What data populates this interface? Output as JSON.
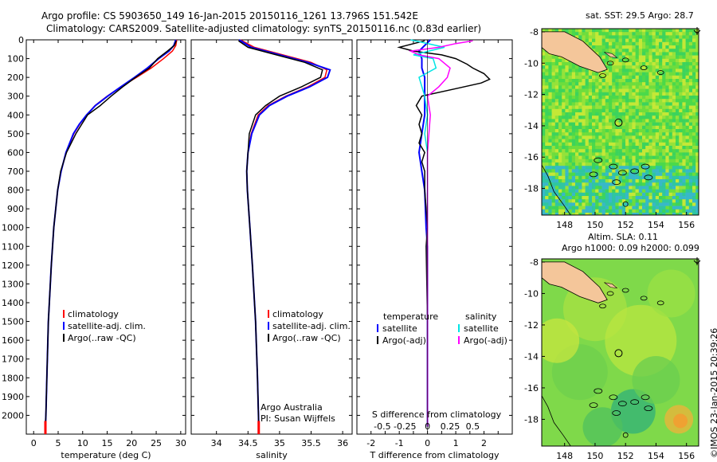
{
  "header": {
    "line1": "Argo profile: CS 5903650_149 16-Jan-2015 20150116_1261 13.796S 151.542E",
    "line2": "Climatology: CARS2009. Satellite-adjusted climatology: synTS_20150116.nc (0.83d earlier)"
  },
  "footer_credit": "©IMOS 23-Jan-2015 20:39:26",
  "chart_data": [
    {
      "type": "line",
      "name": "temperature",
      "xlabel": "temperature (deg C)",
      "ylabel": "",
      "xlim": [
        -1.5,
        31
      ],
      "ylim": [
        2100,
        0
      ],
      "xticks": [
        0,
        5,
        10,
        15,
        20,
        25,
        30
      ],
      "yticks": [
        0,
        100,
        200,
        300,
        400,
        500,
        600,
        700,
        800,
        900,
        1000,
        1100,
        1200,
        1300,
        1400,
        1500,
        1600,
        1700,
        1800,
        1900,
        2000
      ],
      "legend": [
        "climatology",
        "satellite-adj. clim.",
        "Argo(..raw -QC)"
      ],
      "legend_colors": [
        "#ff0000",
        "#0000ff",
        "#000000"
      ],
      "series": [
        {
          "name": "climatology",
          "color": "#ff0000",
          "depth": [
            0,
            30,
            60,
            100,
            150,
            200,
            250,
            300,
            350,
            400,
            450,
            500,
            600,
            700,
            800,
            1000,
            1200,
            1500,
            1800,
            2000,
            2060
          ],
          "values": [
            29.2,
            29.0,
            28.3,
            26.5,
            24.0,
            21.0,
            17.8,
            15.0,
            12.5,
            10.8,
            9.4,
            8.2,
            6.6,
            5.6,
            4.9,
            4.1,
            3.6,
            3.0,
            2.7,
            2.5,
            2.4
          ]
        },
        {
          "name": "satellite-adj. clim.",
          "color": "#0000ff",
          "depth": [
            0,
            30,
            60,
            100,
            150,
            200,
            250,
            300,
            350,
            400,
            450,
            500,
            600,
            700,
            800,
            1000,
            1200,
            1500,
            1800,
            2000,
            2060
          ],
          "values": [
            29.0,
            28.6,
            27.6,
            25.5,
            23.2,
            20.6,
            17.8,
            15.1,
            12.6,
            10.8,
            9.3,
            8.1,
            6.6,
            5.6,
            4.9,
            4.1,
            3.6,
            3.0,
            2.7,
            2.5,
            2.4
          ]
        },
        {
          "name": "Argo(..raw -QC)",
          "color": "#000000",
          "depth": [
            5,
            30,
            60,
            100,
            150,
            200,
            250,
            300,
            350,
            400,
            450,
            500,
            600,
            700,
            800,
            1000,
            1200,
            1500,
            1800,
            2000,
            2060
          ],
          "values": [
            29.1,
            28.7,
            27.3,
            25.3,
            23.6,
            20.8,
            18.2,
            15.8,
            13.6,
            11.0,
            9.8,
            8.6,
            6.7,
            5.5,
            4.9,
            4.1,
            3.6,
            3.0,
            2.7,
            2.5,
            2.4
          ]
        }
      ],
      "marker": {
        "label": "bottom marker",
        "x": 2.4,
        "depth": 2060,
        "color": "#ff0000"
      }
    },
    {
      "type": "line",
      "name": "salinity",
      "xlabel": "salinity",
      "ylabel": "",
      "xlim": [
        33.6,
        36.15
      ],
      "ylim": [
        2100,
        0
      ],
      "xticks": [
        34,
        34.5,
        35,
        35.5,
        36
      ],
      "legend": [
        "climatology",
        "satellite-adj. clim.",
        "Argo(..raw -QC)"
      ],
      "legend_colors": [
        "#ff0000",
        "#0000ff",
        "#000000"
      ],
      "annotation_lines": [
        "Argo Australia",
        "PI: Susan Wijffels"
      ],
      "series": [
        {
          "name": "climatology",
          "color": "#ff0000",
          "depth": [
            0,
            40,
            80,
            120,
            160,
            200,
            250,
            300,
            350,
            400,
            500,
            600,
            700,
            800,
            1000,
            1200,
            1500,
            1800,
            2060
          ],
          "values": [
            34.38,
            34.6,
            35.05,
            35.5,
            35.75,
            35.72,
            35.45,
            35.1,
            34.82,
            34.66,
            34.55,
            34.5,
            34.48,
            34.49,
            34.53,
            34.57,
            34.62,
            34.65,
            34.67
          ]
        },
        {
          "name": "satellite-adj. clim.",
          "color": "#0000ff",
          "depth": [
            0,
            40,
            80,
            120,
            160,
            200,
            250,
            300,
            350,
            400,
            500,
            600,
            700,
            800,
            1000,
            1200,
            1500,
            1800,
            2060
          ],
          "values": [
            34.36,
            34.55,
            35.0,
            35.45,
            35.8,
            35.76,
            35.48,
            35.12,
            34.84,
            34.68,
            34.56,
            34.5,
            34.48,
            34.49,
            34.53,
            34.57,
            34.62,
            34.65,
            34.67
          ]
        },
        {
          "name": "Argo(..raw -QC)",
          "color": "#000000",
          "depth": [
            5,
            40,
            80,
            120,
            160,
            200,
            250,
            300,
            350,
            400,
            500,
            600,
            700,
            800,
            1000,
            1200,
            1500,
            1800,
            2060
          ],
          "values": [
            34.35,
            34.5,
            34.95,
            35.4,
            35.68,
            35.65,
            35.35,
            35.0,
            34.78,
            34.62,
            34.52,
            34.5,
            34.48,
            34.49,
            34.53,
            34.57,
            34.62,
            34.65,
            34.67
          ]
        }
      ],
      "marker": {
        "label": "bottom marker",
        "x": 34.67,
        "depth": 2060,
        "color": "#ff0000"
      }
    },
    {
      "type": "line",
      "name": "difference",
      "title": "S difference from climatology",
      "xlabel": "T difference from climatology",
      "xlim": [
        -2.5,
        3
      ],
      "ylim": [
        2100,
        0
      ],
      "xticks": [
        -2,
        -1.5,
        -1,
        -0.5,
        0,
        0.5,
        1,
        1.5,
        2,
        2.5
      ],
      "xticklabels": [
        "-2",
        "",
        "-1",
        "",
        "0",
        "",
        "1",
        "",
        "2",
        ""
      ],
      "top_scale": {
        "ticks": [
          -0.5,
          -0.25,
          0,
          0.25,
          0.5
        ],
        "labels": [
          "-0.5",
          "-0.25",
          "0",
          "0.25",
          "0.5"
        ],
        "factor": 3.2
      },
      "legend_temperature": {
        "title": "temperature",
        "items": [
          "satellite",
          "Argo(-adj)"
        ],
        "colors": [
          "#0000ff",
          "#000000"
        ]
      },
      "legend_salinity": {
        "title": "salinity",
        "items": [
          "satellite",
          "Argo(-adj)"
        ],
        "colors": [
          "#00e5e5",
          "#ff00ff"
        ]
      },
      "series": [
        {
          "name": "T satellite",
          "color": "#0000ff",
          "depth": [
            0,
            60,
            100,
            150,
            200,
            300,
            400,
            500,
            600,
            700,
            800,
            1000,
            1100,
            1500,
            2060
          ],
          "values": [
            0.1,
            -0.3,
            -0.2,
            -0.2,
            -0.1,
            -0.1,
            -0.1,
            -0.2,
            -0.3,
            -0.2,
            -0.1,
            -0.05,
            0,
            0,
            0
          ]
        },
        {
          "name": "T Argo(-adj)",
          "color": "#000000",
          "depth": [
            5,
            40,
            60,
            80,
            100,
            130,
            150,
            180,
            210,
            230,
            260,
            300,
            350,
            400,
            450,
            500,
            550,
            600,
            650,
            700,
            800,
            900,
            1000,
            1100,
            1500,
            2060
          ],
          "values": [
            -0.1,
            -1.0,
            -0.5,
            0.5,
            1.0,
            1.4,
            1.6,
            2.0,
            2.2,
            1.9,
            1.0,
            -0.2,
            -0.4,
            -0.2,
            -0.3,
            -0.2,
            -0.3,
            -0.1,
            -0.2,
            -0.1,
            -0.1,
            -0.05,
            0,
            -0.05,
            0,
            0
          ]
        },
        {
          "name": "S satellite",
          "color": "#00e5e5",
          "depth": [
            0,
            40,
            80,
            100,
            150,
            200,
            300,
            400,
            500,
            600,
            800,
            1000,
            1500,
            2060
          ],
          "values": [
            -0.6,
            0.6,
            -0.5,
            0.2,
            0.3,
            -0.3,
            -0.1,
            0,
            -0.1,
            0,
            0,
            0,
            0,
            0
          ]
        },
        {
          "name": "S Argo(-adj)",
          "color": "#ff00ff",
          "depth": [
            5,
            20,
            40,
            60,
            80,
            100,
            150,
            200,
            250,
            300,
            400,
            500,
            600,
            800,
            1000,
            1500,
            2060
          ],
          "values": [
            1.6,
            1.0,
            0.4,
            -0.6,
            -0.3,
            0.4,
            0.8,
            0.7,
            0.4,
            0.0,
            0.1,
            0.05,
            0,
            0,
            0,
            0,
            0
          ]
        }
      ]
    },
    {
      "type": "heatmap",
      "name": "sst map",
      "title": "sat. SST: 29.5 Argo: 28.7",
      "xlim": [
        146.5,
        156.8
      ],
      "ylim": [
        -19.7,
        -7.8
      ],
      "xticks": [
        148,
        150,
        152,
        154,
        156
      ],
      "yticks": [
        -8,
        -10,
        -12,
        -14,
        -16,
        -18
      ]
    },
    {
      "type": "heatmap",
      "name": "sla map",
      "title_lines": [
        "Altim. SLA: 0.11",
        "Argo h1000: 0.09 h2000: 0.099"
      ],
      "xlim": [
        146.5,
        156.8
      ],
      "ylim": [
        -19.7,
        -7.8
      ],
      "xticks": [
        148,
        150,
        152,
        154,
        156
      ],
      "yticks": [
        -8,
        -10,
        -12,
        -14,
        -16,
        -18
      ]
    }
  ]
}
